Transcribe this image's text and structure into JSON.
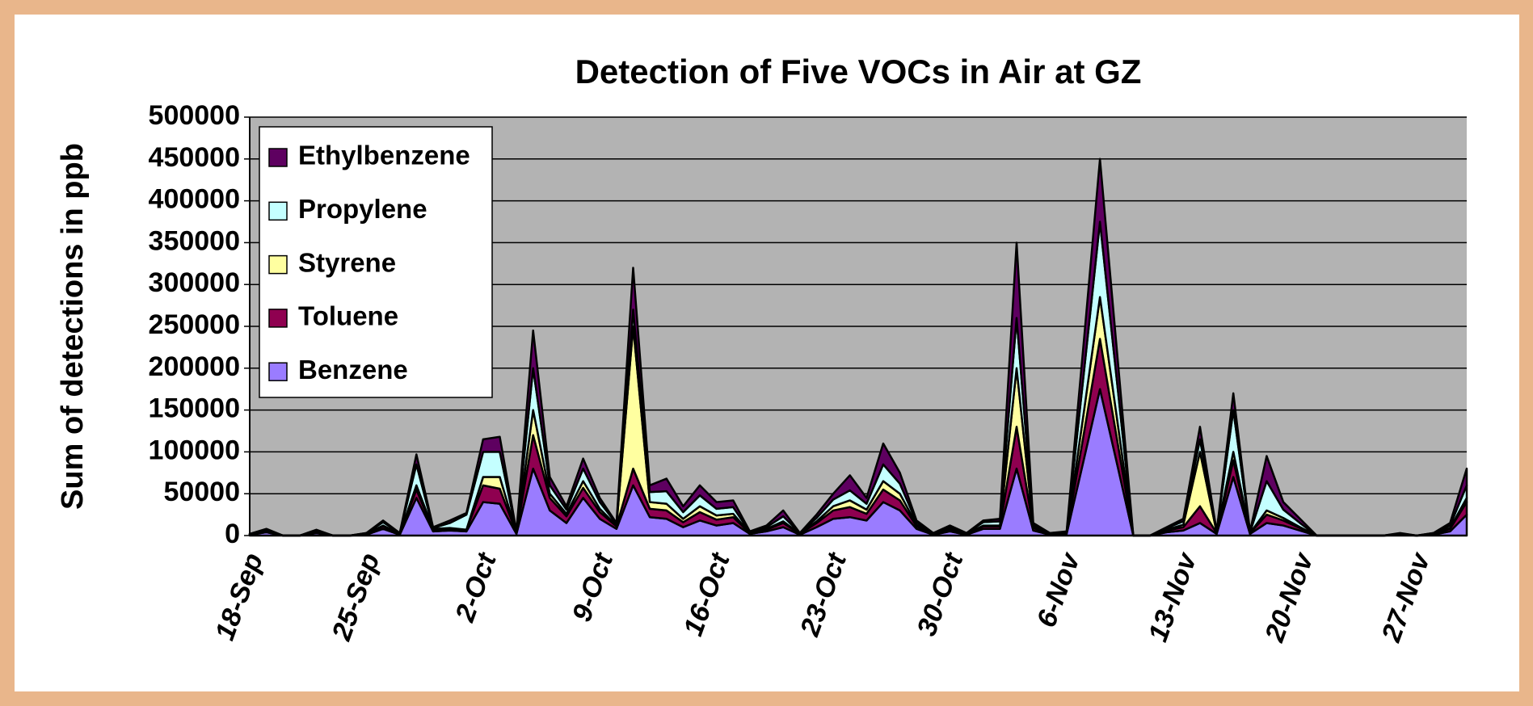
{
  "chart_data": {
    "type": "stacked_area",
    "title": "Detection of Five VOCs in Air at GZ",
    "y_label": "Sum of detections in ppb",
    "categories": [
      "18-Sep",
      null,
      null,
      null,
      null,
      null,
      null,
      "25-Sep",
      null,
      null,
      null,
      null,
      null,
      null,
      "2-Oct",
      null,
      null,
      null,
      null,
      null,
      null,
      "9-Oct",
      null,
      null,
      null,
      null,
      null,
      null,
      "16-Oct",
      null,
      null,
      null,
      null,
      null,
      null,
      "23-Oct",
      null,
      null,
      null,
      null,
      null,
      null,
      "30-Oct",
      null,
      null,
      null,
      null,
      null,
      null,
      "6-Nov",
      null,
      null,
      null,
      null,
      null,
      null,
      "13-Nov",
      null,
      null,
      null,
      null,
      null,
      null,
      "20-Nov",
      null,
      null,
      null,
      null,
      null,
      null,
      "27-Nov",
      null,
      null,
      null
    ],
    "series": [
      {
        "name": "Benzene",
        "color": "#9a7cff",
        "values": [
          1000,
          4000,
          0,
          0,
          3000,
          0,
          0,
          1000,
          8000,
          1000,
          45000,
          5000,
          6000,
          5000,
          40000,
          38000,
          2000,
          80000,
          30000,
          15000,
          45000,
          20000,
          8000,
          60000,
          22000,
          20000,
          10000,
          18000,
          12000,
          15000,
          2000,
          5000,
          10000,
          1000,
          10000,
          20000,
          22000,
          18000,
          40000,
          30000,
          8000,
          1000,
          5000,
          1000,
          8000,
          8000,
          80000,
          6000,
          1000,
          2000,
          88000,
          175000,
          88000,
          0,
          0,
          4000,
          6000,
          15000,
          2000,
          70000,
          2000,
          15000,
          12000,
          6000,
          0,
          0,
          0,
          0,
          0,
          1000,
          0,
          1000,
          5000,
          25000
        ]
      },
      {
        "name": "Toluene",
        "color": "#8f0050",
        "values": [
          500,
          2000,
          0,
          0,
          2000,
          0,
          0,
          1000,
          3000,
          1000,
          10000,
          2000,
          2000,
          2000,
          20000,
          18000,
          1000,
          40000,
          15000,
          8000,
          12000,
          8000,
          3000,
          20000,
          10000,
          10000,
          6000,
          10000,
          7000,
          7000,
          1000,
          2000,
          5000,
          1000,
          5000,
          10000,
          12000,
          8000,
          15000,
          12000,
          3000,
          1000,
          2000,
          1000,
          3000,
          3000,
          50000,
          3000,
          1000,
          1000,
          30000,
          60000,
          30000,
          0,
          0,
          2000,
          4000,
          20000,
          1000,
          20000,
          1000,
          10000,
          6000,
          3000,
          0,
          0,
          0,
          0,
          0,
          500,
          0,
          1000,
          3000,
          15000
        ]
      },
      {
        "name": "Styrene",
        "color": "#ffffa0",
        "values": [
          0,
          0,
          0,
          0,
          0,
          0,
          0,
          0,
          1000,
          0,
          5000,
          1000,
          1000,
          0,
          10000,
          14000,
          0,
          30000,
          5000,
          3000,
          8000,
          4000,
          1000,
          170000,
          8000,
          8000,
          4000,
          7000,
          5000,
          4000,
          0,
          1000,
          2000,
          0,
          2000,
          5000,
          8000,
          5000,
          10000,
          8000,
          2000,
          0,
          1000,
          0,
          1000,
          1000,
          70000,
          2000,
          0,
          0,
          25000,
          50000,
          25000,
          0,
          0,
          1000,
          3000,
          65000,
          1000,
          10000,
          0,
          5000,
          3000,
          1000,
          0,
          0,
          0,
          0,
          0,
          0,
          0,
          0,
          1000,
          5000
        ]
      },
      {
        "name": "Propylene",
        "color": "#c4ffff",
        "values": [
          500,
          1000,
          0,
          0,
          1000,
          0,
          0,
          1000,
          4000,
          1000,
          25000,
          1000,
          6000,
          18000,
          30000,
          30000,
          1000,
          50000,
          10000,
          5000,
          15000,
          8000,
          2000,
          20000,
          12000,
          15000,
          8000,
          13000,
          8000,
          8000,
          1000,
          2000,
          6000,
          1000,
          4000,
          8000,
          12000,
          7000,
          20000,
          12000,
          3000,
          1000,
          2000,
          1000,
          4000,
          5000,
          60000,
          2000,
          1000,
          1000,
          45000,
          90000,
          45000,
          0,
          0,
          2000,
          4000,
          15000,
          1000,
          50000,
          1000,
          35000,
          10000,
          5000,
          0,
          0,
          0,
          0,
          0,
          1000,
          0,
          1000,
          3000,
          15000
        ]
      },
      {
        "name": "Ethylbenzene",
        "color": "#5e0060",
        "values": [
          0,
          1000,
          0,
          0,
          1000,
          0,
          0,
          0,
          2000,
          0,
          12000,
          1000,
          3000,
          2000,
          15000,
          18000,
          1000,
          45000,
          10000,
          4000,
          12000,
          5000,
          1000,
          50000,
          8000,
          15000,
          7000,
          12000,
          8000,
          8000,
          1000,
          2000,
          7000,
          0,
          4000,
          7000,
          18000,
          7000,
          25000,
          13000,
          2000,
          0,
          2000,
          0,
          2000,
          3000,
          90000,
          2000,
          0,
          1000,
          37000,
          75000,
          37000,
          0,
          0,
          1000,
          3000,
          15000,
          0,
          20000,
          1000,
          30000,
          9000,
          5000,
          0,
          0,
          0,
          0,
          0,
          500,
          0,
          0,
          3000,
          20000
        ]
      }
    ],
    "ylim": [
      0,
      500000
    ],
    "yticks": [
      0,
      50000,
      100000,
      150000,
      200000,
      250000,
      300000,
      350000,
      400000,
      450000,
      500000
    ],
    "grid": true,
    "plot_background": "#b3b3b3",
    "legend": "upper left"
  }
}
